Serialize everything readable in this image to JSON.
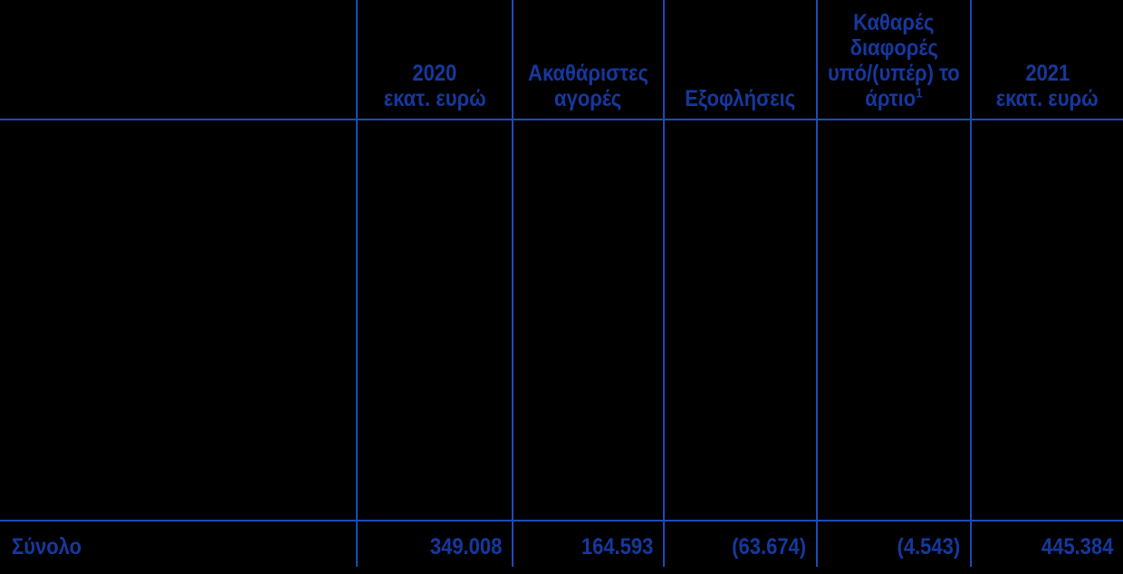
{
  "colors": {
    "background": "#000000",
    "text": "#16389E",
    "grid_line": "#1C4BBA"
  },
  "table": {
    "header": {
      "col_2020": [
        "2020",
        "εκατ. ευρώ"
      ],
      "col_gross_purchases": [
        "Ακαθάριστες",
        "αγορές"
      ],
      "col_redemptions": [
        "Εξοφλήσεις"
      ],
      "col_net_differences": [
        "Καθαρές",
        "διαφορές",
        "υπό/(υπέρ) το",
        "άρτιο"
      ],
      "col_net_differences_footnote": "1",
      "col_2021": [
        "2021",
        "εκατ. ευρώ"
      ]
    },
    "total_row": {
      "label": "Σύνολο",
      "value_2020": "349.008",
      "gross_purchases": "164.593",
      "redemptions": "(63.674)",
      "net_differences": "(4.543)",
      "value_2021": "445.384"
    }
  }
}
